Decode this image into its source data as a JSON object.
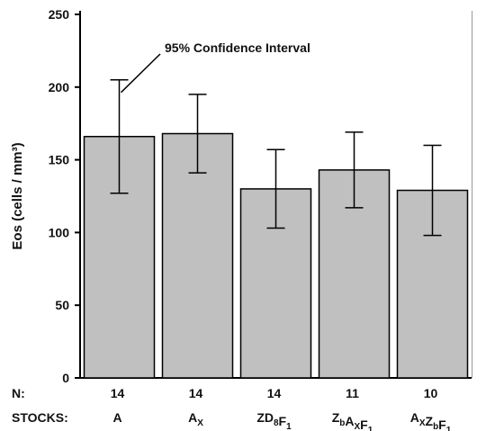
{
  "chart_data": {
    "type": "bar",
    "ylabel": "Eos (cells / mm³)",
    "ylim": [
      0,
      250
    ],
    "yticks": [
      0,
      50,
      100,
      150,
      200,
      250
    ],
    "grid": false,
    "categories": [
      "A",
      "Ax",
      "ZD8F1",
      "ZbAxF1",
      "AxZbF1"
    ],
    "category_labels": [
      {
        "parts": [
          {
            "t": "A",
            "s": ""
          }
        ]
      },
      {
        "parts": [
          {
            "t": "A",
            "s": ""
          },
          {
            "t": "X",
            "s": "sub"
          }
        ]
      },
      {
        "parts": [
          {
            "t": "ZD",
            "s": ""
          },
          {
            "t": "8",
            "s": "sub"
          },
          {
            "t": "F",
            "s": ""
          },
          {
            "t": "1",
            "s": "sub"
          }
        ]
      },
      {
        "parts": [
          {
            "t": "Z",
            "s": ""
          },
          {
            "t": "b",
            "s": "sub"
          },
          {
            "t": "A",
            "s": ""
          },
          {
            "t": "X",
            "s": "sub"
          },
          {
            "t": "F",
            "s": ""
          },
          {
            "t": "1",
            "s": "sub"
          }
        ]
      },
      {
        "parts": [
          {
            "t": "A",
            "s": ""
          },
          {
            "t": "X",
            "s": "sub"
          },
          {
            "t": "Z",
            "s": ""
          },
          {
            "t": "b",
            "s": "sub"
          },
          {
            "t": "F",
            "s": ""
          },
          {
            "t": "1",
            "s": "sub"
          }
        ]
      }
    ],
    "values": [
      166,
      168,
      130,
      143,
      129
    ],
    "ci_low": [
      127,
      141,
      103,
      117,
      98
    ],
    "ci_high": [
      205,
      195,
      157,
      169,
      160
    ],
    "n": [
      14,
      14,
      14,
      11,
      10
    ],
    "n_label": "N:",
    "stocks_label": "STOCKS:",
    "annotation": "95% Confidence Interval",
    "bar_color": "#c0c0c0"
  }
}
